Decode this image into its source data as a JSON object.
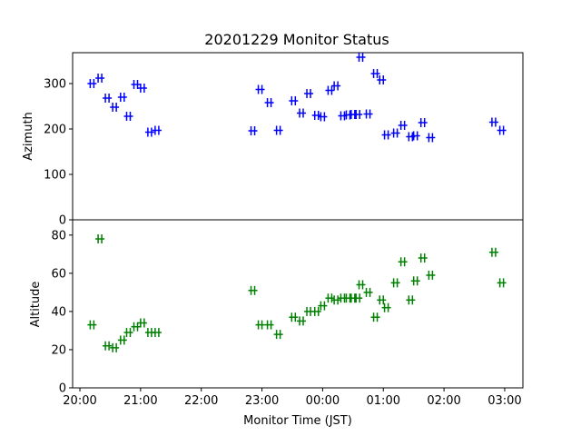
{
  "chart_data": {
    "type": "scatter",
    "title": "20201229 Monitor Status",
    "xlabel": "Monitor Time (JST)",
    "x_axis": {
      "unit": "hours since 20:00 JST",
      "xlim": [
        -0.12,
        7.3
      ],
      "tick_values": [
        0,
        1,
        2,
        3,
        4,
        5,
        6,
        7
      ],
      "tick_labels": [
        "20:00",
        "21:00",
        "22:00",
        "23:00",
        "00:00",
        "01:00",
        "02:00",
        "03:00"
      ]
    },
    "grid": false,
    "marker": "plus-square",
    "panels": [
      {
        "name": "azimuth",
        "ylabel": "Azimuth",
        "ylim": [
          0,
          368
        ],
        "yticks": [
          0,
          100,
          200,
          300
        ],
        "color": "#0000ff",
        "points": [
          [
            0.2,
            300
          ],
          [
            0.33,
            312
          ],
          [
            0.45,
            268
          ],
          [
            0.57,
            248
          ],
          [
            0.7,
            270
          ],
          [
            0.8,
            228
          ],
          [
            0.92,
            298
          ],
          [
            1.03,
            290
          ],
          [
            1.15,
            193
          ],
          [
            1.27,
            197
          ],
          [
            2.85,
            196
          ],
          [
            2.97,
            287
          ],
          [
            3.12,
            258
          ],
          [
            3.27,
            197
          ],
          [
            3.52,
            262
          ],
          [
            3.65,
            235
          ],
          [
            3.77,
            278
          ],
          [
            3.9,
            230
          ],
          [
            4.0,
            227
          ],
          [
            4.12,
            285
          ],
          [
            4.22,
            295
          ],
          [
            4.33,
            229
          ],
          [
            4.42,
            231
          ],
          [
            4.5,
            232
          ],
          [
            4.58,
            232
          ],
          [
            4.63,
            358
          ],
          [
            4.75,
            233
          ],
          [
            4.87,
            322
          ],
          [
            4.97,
            308
          ],
          [
            5.05,
            187
          ],
          [
            5.2,
            191
          ],
          [
            5.32,
            208
          ],
          [
            5.45,
            183
          ],
          [
            5.53,
            185
          ],
          [
            5.65,
            214
          ],
          [
            5.78,
            181
          ],
          [
            6.82,
            215
          ],
          [
            6.95,
            197
          ]
        ]
      },
      {
        "name": "altitude",
        "ylabel": "Altitude",
        "ylim": [
          0,
          88
        ],
        "yticks": [
          0,
          20,
          40,
          60,
          80
        ],
        "color": "#008000",
        "points": [
          [
            0.2,
            33
          ],
          [
            0.33,
            78
          ],
          [
            0.45,
            22
          ],
          [
            0.57,
            21
          ],
          [
            0.7,
            25
          ],
          [
            0.8,
            29
          ],
          [
            0.92,
            32
          ],
          [
            1.03,
            34
          ],
          [
            1.15,
            29
          ],
          [
            1.27,
            29
          ],
          [
            2.85,
            51
          ],
          [
            2.97,
            33
          ],
          [
            3.12,
            33
          ],
          [
            3.27,
            28
          ],
          [
            3.52,
            37
          ],
          [
            3.65,
            35
          ],
          [
            3.77,
            40
          ],
          [
            3.9,
            40
          ],
          [
            4.0,
            43
          ],
          [
            4.12,
            47
          ],
          [
            4.22,
            46
          ],
          [
            4.33,
            47
          ],
          [
            4.42,
            47
          ],
          [
            4.5,
            47
          ],
          [
            4.58,
            47
          ],
          [
            4.63,
            54
          ],
          [
            4.75,
            50
          ],
          [
            4.87,
            37
          ],
          [
            4.97,
            46
          ],
          [
            5.05,
            42
          ],
          [
            5.2,
            55
          ],
          [
            5.32,
            66
          ],
          [
            5.45,
            46
          ],
          [
            5.53,
            56
          ],
          [
            5.65,
            68
          ],
          [
            5.78,
            59
          ],
          [
            6.82,
            71
          ],
          [
            6.95,
            55
          ]
        ]
      }
    ]
  }
}
